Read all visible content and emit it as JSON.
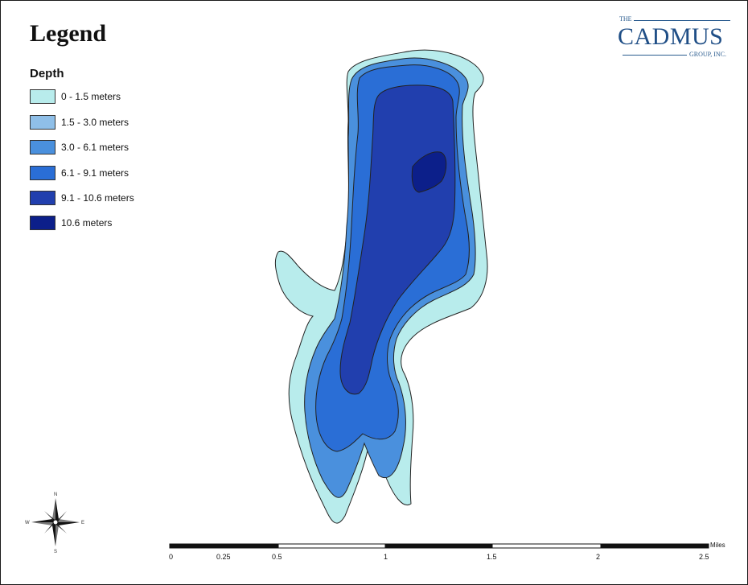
{
  "legend": {
    "title": "Legend",
    "field": "Depth",
    "classes": [
      {
        "label": "0 - 1.5 meters",
        "color": "#b8ecec"
      },
      {
        "label": "1.5 - 3.0 meters",
        "color": "#8fbfe8"
      },
      {
        "label": "3.0 - 6.1 meters",
        "color": "#4a90dd"
      },
      {
        "label": "6.1 - 9.1 meters",
        "color": "#2a6ed6"
      },
      {
        "label": "9.1 - 10.6 meters",
        "color": "#213fae"
      },
      {
        "label": "10.6 meters",
        "color": "#0c1f8a"
      }
    ]
  },
  "logo": {
    "prefix": "THE",
    "name": "CADMUS",
    "suffix": "GROUP, INC."
  },
  "scale_bar": {
    "unit": "Miles",
    "ticks": [
      "0",
      "0.25",
      "0.5",
      "1",
      "1.5",
      "2",
      "2.5"
    ]
  },
  "compass": {
    "north": "N",
    "south": "S",
    "east": "E",
    "west": "W"
  }
}
